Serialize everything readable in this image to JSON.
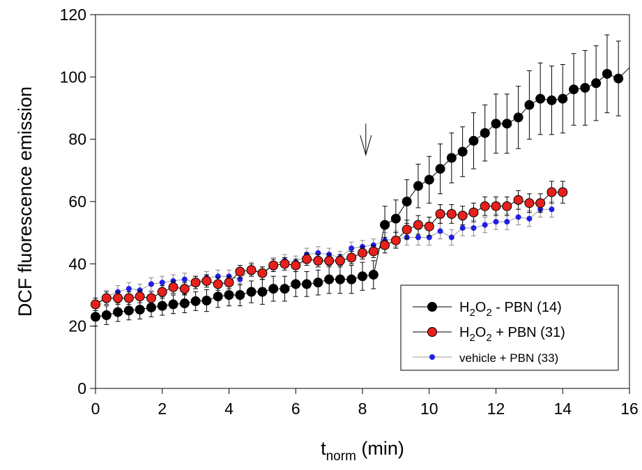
{
  "chart_data": {
    "type": "scatter",
    "xlabel": {
      "main": "t",
      "sub": "norm",
      "rest": " (min)"
    },
    "ylabel": "DCF fluorescence emission",
    "xlim": [
      0,
      16
    ],
    "ylim": [
      0,
      120
    ],
    "xticks": [
      0,
      2,
      4,
      6,
      8,
      10,
      12,
      14,
      16
    ],
    "yticks": [
      0,
      20,
      40,
      60,
      80,
      100,
      120
    ],
    "grid": false,
    "legend_position": "bottom-right",
    "annotation": {
      "type": "down-arrow",
      "x": 8.1,
      "y_from": 85,
      "y_to": 75
    },
    "series": [
      {
        "name": "H2O2 - PBN (14)",
        "legend": {
          "pre": "H",
          "sub1": "2",
          "mid": "O",
          "sub2": "2",
          "post": " - PBN (14)"
        },
        "color": "#000000",
        "marker_size": "large",
        "line_extend_to": [
          16,
          103
        ],
        "x": [
          0,
          0.33,
          0.67,
          1,
          1.33,
          1.67,
          2,
          2.33,
          2.67,
          3,
          3.33,
          3.67,
          4,
          4.33,
          4.67,
          5,
          5.33,
          5.67,
          6,
          6.33,
          6.67,
          7,
          7.33,
          7.67,
          8,
          8.33,
          8.67,
          9,
          9.33,
          9.67,
          10,
          10.33,
          10.67,
          11,
          11.33,
          11.67,
          12,
          12.33,
          12.67,
          13,
          13.33,
          13.67,
          14,
          14.33,
          14.67,
          15,
          15.33,
          15.67
        ],
        "y": [
          23,
          23.5,
          24.5,
          25,
          25.3,
          26,
          26.5,
          27,
          27.3,
          28,
          28.2,
          29.5,
          30,
          30,
          31,
          31,
          32,
          32,
          33.5,
          33.5,
          34,
          35,
          35,
          35,
          36,
          36.5,
          52.5,
          54.5,
          60,
          65,
          67,
          70.5,
          74,
          76,
          79.5,
          82,
          85,
          85,
          87,
          91,
          93,
          92.5,
          93,
          96,
          96.5,
          98,
          101,
          99.5
        ],
        "err": [
          3,
          3,
          3,
          3,
          3,
          3,
          3,
          3,
          3,
          3,
          3.5,
          3.5,
          3.5,
          3.5,
          3.5,
          4,
          4,
          4,
          4,
          4,
          4,
          4.5,
          4.5,
          4.5,
          4.5,
          4.5,
          6,
          6,
          7,
          7,
          7.5,
          8,
          8,
          8,
          9,
          9,
          9.5,
          9.5,
          10,
          11,
          11.5,
          11,
          11,
          11.5,
          12,
          12,
          12.5,
          12
        ]
      },
      {
        "name": "H2O2 + PBN (31)",
        "legend": {
          "pre": "H",
          "sub1": "2",
          "mid": "O",
          "sub2": "2",
          "post": " + PBN (31)"
        },
        "color": "#e8201c",
        "marker_size": "large",
        "x": [
          0,
          0.33,
          0.67,
          1,
          1.33,
          1.67,
          2,
          2.33,
          2.67,
          3,
          3.33,
          3.67,
          4,
          4.33,
          4.67,
          5,
          5.33,
          5.67,
          6,
          6.33,
          6.67,
          7,
          7.33,
          7.67,
          8,
          8.33,
          8.67,
          9,
          9.33,
          9.67,
          10,
          10.33,
          10.67,
          11,
          11.33,
          11.67,
          12,
          12.33,
          12.67,
          13,
          13.33,
          13.67,
          14
        ],
        "y": [
          27,
          29,
          29,
          29,
          29.5,
          29,
          31,
          32.5,
          32,
          34,
          34.5,
          33.5,
          34,
          37.5,
          38,
          37,
          39.5,
          40,
          39.5,
          41.5,
          41,
          41,
          41,
          42,
          43.5,
          44,
          46,
          47.5,
          51,
          52.5,
          52,
          56,
          56,
          55.5,
          56.5,
          58.5,
          58.5,
          58.5,
          60.5,
          59.5,
          59.5,
          63,
          63
        ],
        "err": [
          2,
          2,
          2,
          2,
          2,
          2,
          2,
          2,
          2,
          2,
          2,
          2,
          2,
          2,
          2,
          2,
          2,
          2,
          2,
          2,
          2,
          2,
          2,
          2,
          2,
          2,
          2.5,
          2.5,
          3,
          3,
          3,
          3,
          3,
          3,
          3,
          3,
          3,
          3,
          3,
          3,
          3,
          3.5,
          3.5
        ]
      },
      {
        "name": "vehicle + PBN (33)",
        "legend": {
          "pre": "vehicle + PBN (33)",
          "sub1": "",
          "mid": "",
          "sub2": "",
          "post": ""
        },
        "color": "#1f1fe6",
        "marker_size": "small",
        "x": [
          0,
          0.33,
          0.67,
          1,
          1.33,
          1.67,
          2,
          2.33,
          2.67,
          3,
          3.33,
          3.67,
          4,
          4.33,
          4.67,
          5,
          5.33,
          5.67,
          6,
          6.33,
          6.67,
          7,
          7.33,
          7.67,
          8,
          8.33,
          8.67,
          9,
          9.33,
          9.67,
          10,
          10.33,
          10.67,
          11,
          11.33,
          11.67,
          12,
          12.33,
          12.67,
          13,
          13.33,
          13.67
        ],
        "y": [
          27,
          29.5,
          31,
          32,
          31.5,
          33.5,
          34,
          34.5,
          35,
          34,
          35.5,
          36,
          36,
          35,
          38.5,
          37,
          40,
          41,
          40.5,
          43,
          43.5,
          43,
          42,
          45,
          45.5,
          46,
          47.5,
          48,
          48.5,
          48.5,
          48.5,
          50.5,
          48.5,
          51.5,
          51.5,
          52.5,
          53.5,
          53.5,
          55,
          54.5,
          57.5,
          57.5
        ],
        "err": [
          2,
          2,
          2,
          2,
          2,
          2,
          2,
          2,
          2,
          2,
          2,
          2,
          2,
          2,
          2,
          2,
          2,
          2,
          2,
          2,
          2,
          2,
          2,
          2,
          2,
          2,
          2.5,
          2.5,
          2.5,
          2.5,
          2.5,
          2.5,
          2.5,
          2.5,
          2.5,
          2.5,
          2.5,
          2.5,
          2.5,
          2.5,
          2.5,
          2.5
        ]
      }
    ]
  }
}
